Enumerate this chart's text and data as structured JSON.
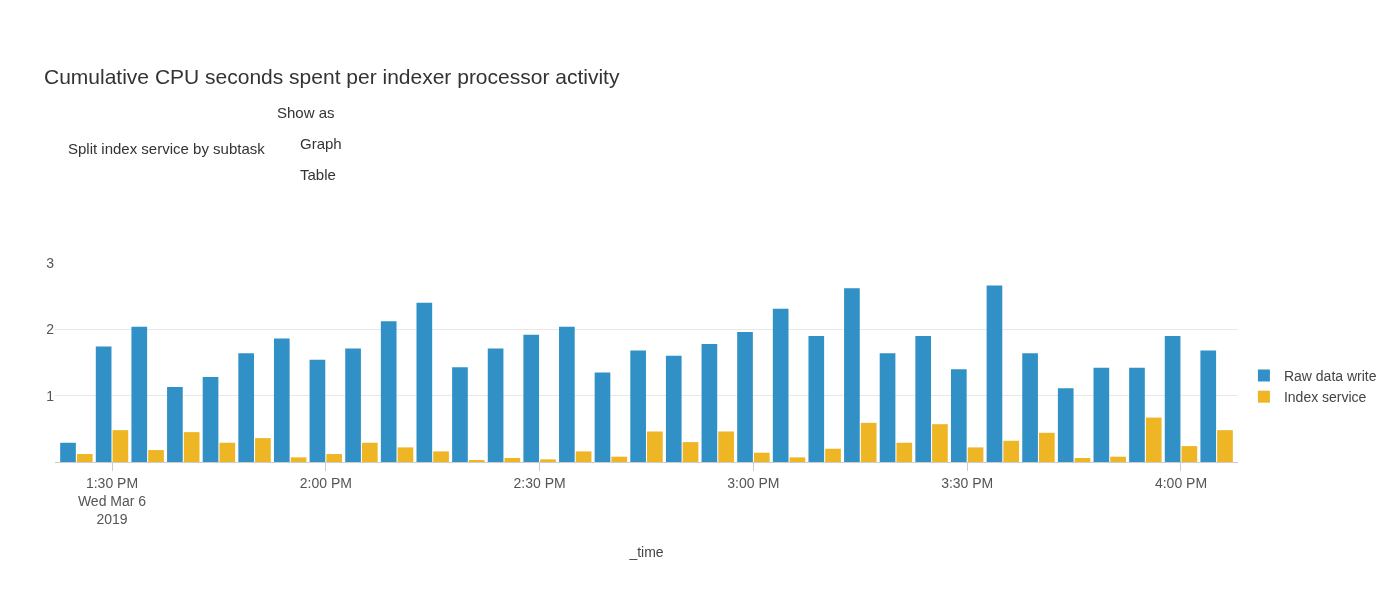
{
  "chart_data": {
    "type": "bar",
    "title": "Cumulative CPU seconds spent per indexer processor activity",
    "xlabel": "_time",
    "annotations": [
      "Split index service by subtask",
      "Show as",
      "Graph",
      "Table"
    ],
    "x": [
      "2019-03-06T13:25",
      "2019-03-06T13:30",
      "2019-03-06T13:35",
      "2019-03-06T13:40",
      "2019-03-06T13:45",
      "2019-03-06T13:50",
      "2019-03-06T13:55",
      "2019-03-06T14:00",
      "2019-03-06T14:05",
      "2019-03-06T14:10",
      "2019-03-06T14:15",
      "2019-03-06T14:20",
      "2019-03-06T14:25",
      "2019-03-06T14:30",
      "2019-03-06T14:35",
      "2019-03-06T14:40",
      "2019-03-06T14:45",
      "2019-03-06T14:50",
      "2019-03-06T14:55",
      "2019-03-06T15:00",
      "2019-03-06T15:05",
      "2019-03-06T15:10",
      "2019-03-06T15:15",
      "2019-03-06T15:20",
      "2019-03-06T15:25",
      "2019-03-06T15:30",
      "2019-03-06T15:35",
      "2019-03-06T15:40",
      "2019-03-06T15:45",
      "2019-03-06T15:50",
      "2019-03-06T15:55",
      "2019-03-06T16:00",
      "2019-03-06T16:05"
    ],
    "series": [
      {
        "name": "Raw data write",
        "color": "#3191c6",
        "values": [
          0.29,
          1.74,
          2.04,
          1.13,
          1.28,
          1.64,
          1.86,
          1.54,
          1.71,
          2.12,
          2.4,
          1.43,
          1.71,
          1.92,
          2.04,
          1.35,
          1.68,
          1.6,
          1.78,
          1.96,
          2.31,
          1.9,
          2.62,
          1.64,
          1.9,
          1.4,
          2.66,
          1.64,
          1.11,
          1.42,
          1.42,
          1.9,
          1.68
        ]
      },
      {
        "name": "Index service",
        "color": "#eeb525",
        "values": [
          0.12,
          0.48,
          0.18,
          0.45,
          0.29,
          0.36,
          0.07,
          0.12,
          0.29,
          0.22,
          0.16,
          0.03,
          0.06,
          0.04,
          0.16,
          0.08,
          0.46,
          0.3,
          0.46,
          0.14,
          0.07,
          0.2,
          0.59,
          0.29,
          0.57,
          0.22,
          0.32,
          0.44,
          0.06,
          0.08,
          0.67,
          0.24,
          0.48
        ]
      }
    ],
    "xlim": [
      "2019-03-06T13:22",
      "2019-03-06T16:08"
    ],
    "xticks": [
      {
        "value": "2019-03-06T13:30",
        "label": "1:30 PM\nWed Mar 6\n2019"
      },
      {
        "value": "2019-03-06T14:00",
        "label": "2:00 PM"
      },
      {
        "value": "2019-03-06T14:30",
        "label": "2:30 PM"
      },
      {
        "value": "2019-03-06T15:00",
        "label": "3:00 PM"
      },
      {
        "value": "2019-03-06T15:30",
        "label": "3:30 PM"
      },
      {
        "value": "2019-03-06T16:00",
        "label": "4:00 PM"
      }
    ],
    "ylim": [
      0,
      3
    ],
    "yticks": [
      1,
      2,
      3
    ],
    "grid": "y",
    "legend": "right"
  }
}
